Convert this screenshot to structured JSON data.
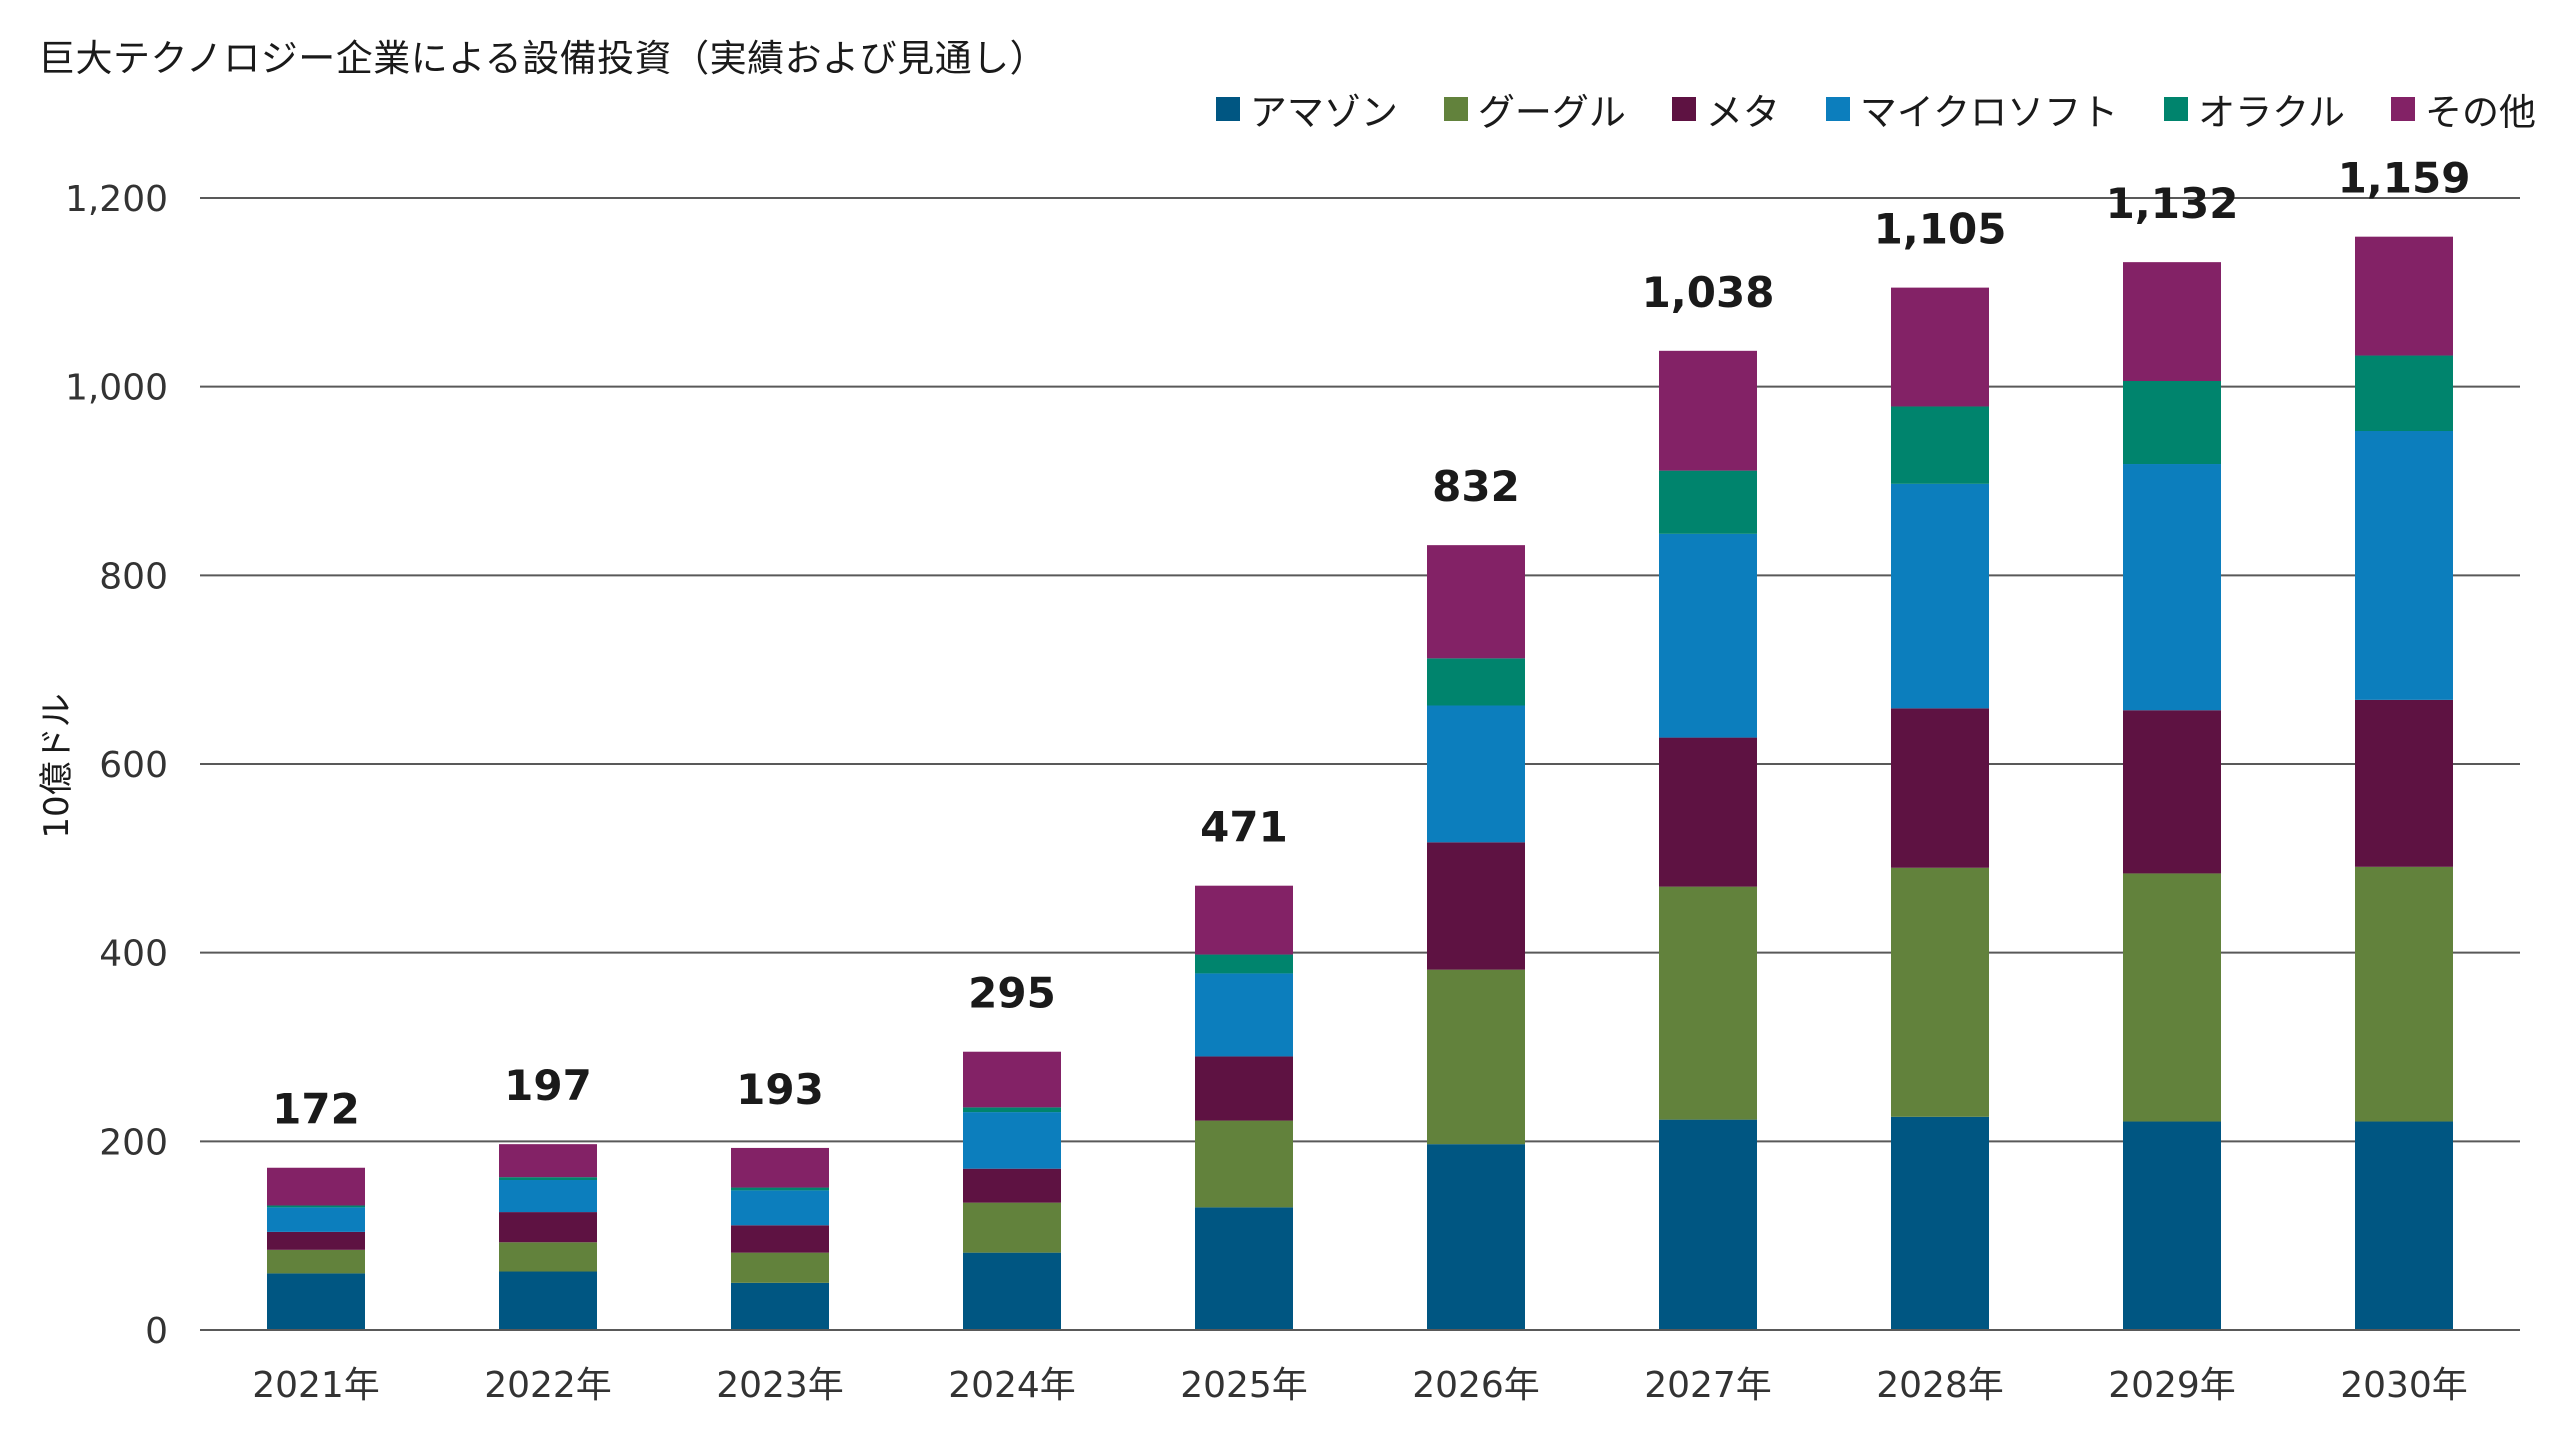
{
  "chart_data": {
    "type": "bar",
    "stacked": true,
    "title": "巨大テクノロジー企業による設備投資（実績および見通し）",
    "ylabel": "10億ドル",
    "xlabel": "",
    "ylim": [
      0,
      1200
    ],
    "yticks": [
      0,
      200,
      400,
      600,
      800,
      1000,
      1200
    ],
    "ytick_labels": [
      "0",
      "200",
      "400",
      "600",
      "800",
      "1,000",
      "1,200"
    ],
    "grid": true,
    "legend_position": "top-right",
    "categories": [
      "2021年",
      "2022年",
      "2023年",
      "2024年",
      "2025年",
      "2026年",
      "2027年",
      "2028年",
      "2029年",
      "2030年"
    ],
    "totals": [
      172,
      197,
      193,
      295,
      471,
      832,
      1038,
      1105,
      1132,
      1159
    ],
    "total_labels": [
      "172",
      "197",
      "193",
      "295",
      "471",
      "832",
      "1,038",
      "1,105",
      "1,132",
      "1,159"
    ],
    "series": [
      {
        "name": "アマゾン",
        "color": "#005682",
        "values": [
          60,
          62,
          50,
          82,
          130,
          197,
          223,
          226,
          221,
          221
        ]
      },
      {
        "name": "グーグル",
        "color": "#62823c",
        "values": [
          25,
          31,
          32,
          53,
          92,
          185,
          247,
          264,
          263,
          270
        ]
      },
      {
        "name": "メタ",
        "color": "#5e1242",
        "values": [
          19,
          32,
          29,
          36,
          68,
          135,
          158,
          169,
          173,
          177
        ]
      },
      {
        "name": "マイクロソフト",
        "color": "#0c7ebd",
        "values": [
          26,
          34,
          37,
          60,
          88,
          145,
          216,
          238,
          261,
          285
        ]
      },
      {
        "name": "オラクル",
        "color": "#00846d",
        "values": [
          2,
          3,
          3,
          5,
          20,
          50,
          67,
          82,
          88,
          80
        ]
      },
      {
        "name": "その他",
        "color": "#832266",
        "values": [
          40,
          35,
          42,
          59,
          73,
          120,
          127,
          126,
          126,
          126
        ]
      }
    ]
  }
}
